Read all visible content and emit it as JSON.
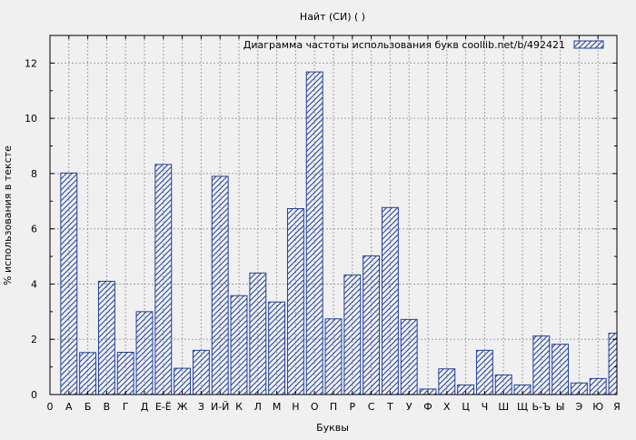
{
  "chart_data": {
    "type": "bar",
    "title": "Найт (СИ) ( )",
    "xlabel": "Буквы",
    "ylabel": "% использования в тексте",
    "legend": {
      "label": "Диаграмма частоты использования букв  coollib.net/b/492421",
      "position": "top-right"
    },
    "x_ticks": [
      "0",
      "А",
      "Б",
      "В",
      "Г",
      "Д",
      "Е-Ё",
      "Ж",
      "З",
      "И-Й",
      "К",
      "Л",
      "М",
      "Н",
      "О",
      "П",
      "Р",
      "С",
      "Т",
      "У",
      "Ф",
      "Х",
      "Ц",
      "Ч",
      "Ш",
      "Щ",
      "Ь-Ъ",
      "Ы",
      "Э",
      "Ю",
      "Я"
    ],
    "categories": [
      "А",
      "Б",
      "В",
      "Г",
      "Д",
      "Е-Ё",
      "Ж",
      "З",
      "И-Й",
      "К",
      "Л",
      "М",
      "Н",
      "О",
      "П",
      "Р",
      "С",
      "Т",
      "У",
      "Ф",
      "Х",
      "Ц",
      "Ч",
      "Ш",
      "Щ",
      "Ь-Ъ",
      "Ы",
      "Э",
      "Ю",
      "Я"
    ],
    "values": [
      8.02,
      1.52,
      4.1,
      1.53,
      3.0,
      8.33,
      0.95,
      1.6,
      7.9,
      3.58,
      4.4,
      3.35,
      6.73,
      11.68,
      2.74,
      4.33,
      5.02,
      6.77,
      2.72,
      0.2,
      0.93,
      0.35,
      1.6,
      0.71,
      0.35,
      2.12,
      1.82,
      0.42,
      0.58,
      2.22
    ],
    "ylim": [
      0,
      13
    ],
    "y_ticks": [
      0,
      2,
      4,
      6,
      8,
      10,
      12
    ],
    "grid": true,
    "colors": {
      "background": "#f0f0f0",
      "plot_background": "#f0f0f0",
      "bar_stroke": "#1f3f9f",
      "bar_hatch": "#1f3f9f",
      "grid": "#a0a0a0"
    }
  }
}
